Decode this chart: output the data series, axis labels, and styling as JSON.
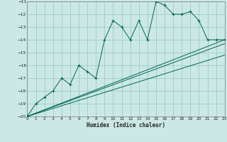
{
  "xlabel": "Humidex (Indice chaleur)",
  "bg_color": "#cce8e4",
  "grid_color": "#99cccc",
  "line_color": "#006655",
  "xlim": [
    0,
    23
  ],
  "ylim": [
    -20,
    -11
  ],
  "xticks": [
    0,
    1,
    2,
    3,
    4,
    5,
    6,
    7,
    8,
    9,
    10,
    11,
    12,
    13,
    14,
    15,
    16,
    17,
    18,
    19,
    20,
    21,
    22,
    23
  ],
  "yticks": [
    -20,
    -19,
    -18,
    -17,
    -16,
    -15,
    -14,
    -13,
    -12,
    -11
  ],
  "series1_x": [
    0,
    1,
    2,
    3,
    4,
    5,
    6,
    7,
    8,
    9,
    10,
    11,
    12,
    13,
    14,
    15,
    16,
    17,
    18,
    19,
    20,
    21,
    22,
    23
  ],
  "series1_y": [
    -20.0,
    -19.0,
    -18.5,
    -18.0,
    -17.0,
    -17.5,
    -16.0,
    -16.5,
    -17.0,
    -14.0,
    -12.5,
    -13.0,
    -14.0,
    -12.5,
    -14.0,
    -11.0,
    -11.3,
    -12.0,
    -12.0,
    -11.8,
    -12.5,
    -14.0,
    -14.0,
    -14.0
  ],
  "series2_x": [
    0,
    23
  ],
  "series2_y": [
    -20.0,
    -14.0
  ],
  "series3_x": [
    0,
    23
  ],
  "series3_y": [
    -20.0,
    -15.2
  ],
  "series4_x": [
    0,
    23
  ],
  "series4_y": [
    -20.0,
    -14.3
  ]
}
